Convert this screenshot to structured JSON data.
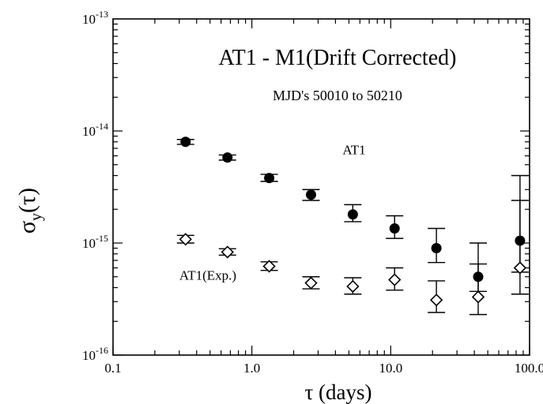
{
  "chart_data": {
    "type": "scatter",
    "title": "AT1 - M1(Drift Corrected)",
    "subtitle": "MJD's 50010 to 50210",
    "xlabel": "τ (days)",
    "ylabel": "σ",
    "ylabel_sub": "y",
    "ylabel_arg": "(τ)",
    "x_scale": "log",
    "y_scale": "log",
    "xlim": [
      0.1,
      100
    ],
    "ylim": [
      1e-16,
      1e-13
    ],
    "x_ticks": [
      {
        "value": 0.1,
        "label": "0.1"
      },
      {
        "value": 1,
        "label": "1.0"
      },
      {
        "value": 10,
        "label": "10.0"
      },
      {
        "value": 100,
        "label": "100.0"
      }
    ],
    "y_ticks": [
      {
        "value": 1e-16,
        "base": "10",
        "exp": "-16"
      },
      {
        "value": 1e-15,
        "base": "10",
        "exp": "-15"
      },
      {
        "value": 1e-14,
        "base": "10",
        "exp": "-14"
      },
      {
        "value": 1e-13,
        "base": "10",
        "exp": "-13"
      }
    ],
    "grid": false,
    "series": [
      {
        "name": "AT1",
        "marker": "filled-circle",
        "color": "#000000",
        "points": [
          {
            "x": 0.333,
            "y": 8e-15,
            "lo": 7.6e-15,
            "hi": 8.4e-15
          },
          {
            "x": 0.667,
            "y": 5.8e-15,
            "lo": 5.5e-15,
            "hi": 6.1e-15
          },
          {
            "x": 1.333,
            "y": 3.8e-15,
            "lo": 3.55e-15,
            "hi": 4.1e-15
          },
          {
            "x": 2.667,
            "y": 2.7e-15,
            "lo": 2.4e-15,
            "hi": 3e-15
          },
          {
            "x": 5.333,
            "y": 1.8e-15,
            "lo": 1.55e-15,
            "hi": 2.2e-15
          },
          {
            "x": 10.667,
            "y": 1.35e-15,
            "lo": 1.1e-15,
            "hi": 1.75e-15
          },
          {
            "x": 21.333,
            "y": 9e-16,
            "lo": 6.7e-16,
            "hi": 1.35e-15
          },
          {
            "x": 42.667,
            "y": 5e-16,
            "lo": 3.7e-16,
            "hi": 6.5e-16
          },
          {
            "x": 85.333,
            "y": 1.05e-15,
            "lo": 5.5e-16,
            "hi": 2.4e-15
          }
        ]
      },
      {
        "name": "AT1(Exp.)",
        "marker": "open-diamond",
        "color": "#000000",
        "points": [
          {
            "x": 0.333,
            "y": 1.08e-15,
            "lo": 1e-15,
            "hi": 1.17e-15
          },
          {
            "x": 0.667,
            "y": 8.3e-16,
            "lo": 7.8e-16,
            "hi": 8.9e-16
          },
          {
            "x": 1.333,
            "y": 6.2e-16,
            "lo": 5.7e-16,
            "hi": 6.8e-16
          },
          {
            "x": 2.667,
            "y": 4.4e-16,
            "lo": 3.9e-16,
            "hi": 5e-16
          },
          {
            "x": 5.333,
            "y": 4.1e-16,
            "lo": 3.5e-16,
            "hi": 4.9e-16
          },
          {
            "x": 10.667,
            "y": 4.7e-16,
            "lo": 3.8e-16,
            "hi": 6e-16
          },
          {
            "x": 21.333,
            "y": 3.1e-16,
            "lo": 2.4e-16,
            "hi": 4.6e-16
          },
          {
            "x": 42.667,
            "y": 3.3e-16,
            "lo": 2.3e-16,
            "hi": 1e-15
          },
          {
            "x": 85.333,
            "y": 6e-16,
            "lo": 3.5e-16,
            "hi": 4e-15
          }
        ]
      }
    ],
    "annotations": [
      {
        "text": "AT1",
        "x": 4.5,
        "y": 6.2e-15
      },
      {
        "text": "AT1(Exp.)",
        "x": 0.3,
        "y": 4.7e-16
      }
    ]
  }
}
